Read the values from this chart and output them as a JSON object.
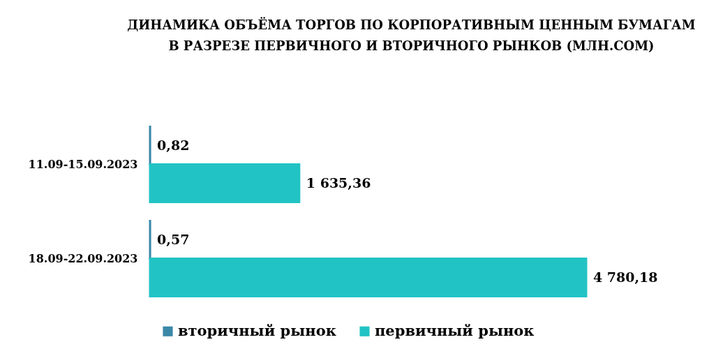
{
  "chart_data": {
    "type": "bar",
    "orientation": "horizontal",
    "title": "ДИНАМИКА ОБЪЁМА ТОРГОВ ПО КОРПОРАТИВНЫМ ЦЕННЫМ БУМАГАМ\nВ РАЗРЕЗЕ ПЕРВИЧНОГО И ВТОРИЧНОГО РЫНКОВ  (МЛН.СОМ)",
    "categories": [
      "11.09-15.09.2023",
      "18.09-22.09.2023"
    ],
    "series": [
      {
        "name": "вторичный рынок",
        "color": "#3a87a8",
        "values": [
          0.82,
          0.57
        ],
        "value_labels": [
          "0,82",
          "0,57"
        ]
      },
      {
        "name": "первичный рынок",
        "color": "#22c3c4",
        "values": [
          1635.36,
          4780.18
        ],
        "value_labels": [
          "1 635,36",
          "4 780,18"
        ]
      }
    ],
    "legend": "bottom",
    "tick_labels": "y"
  }
}
